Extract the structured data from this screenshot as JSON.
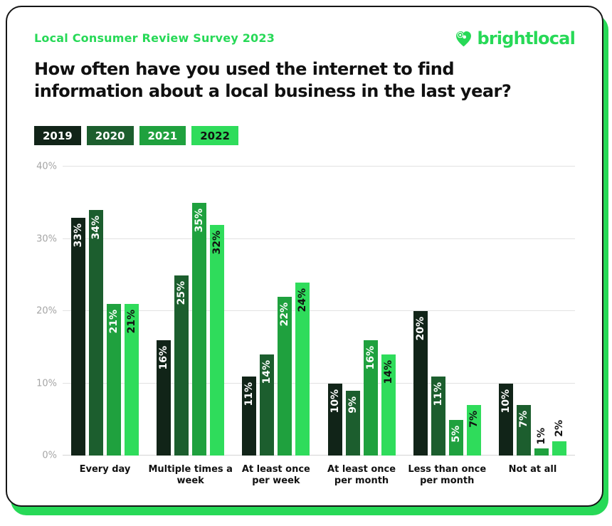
{
  "header": {
    "eyebrow": "Local Consumer Review Survey 2023",
    "brand_name": "brightlocal"
  },
  "title_lines": [
    "How often have you used the internet to find",
    "information about a local business in the last year?"
  ],
  "chart_data": {
    "type": "bar",
    "title": "How often have you used the internet to find information about a local business in the last year?",
    "categories": [
      "Every day",
      "Multiple times a week",
      "At least once per week",
      "At least once per month",
      "Less than once per month",
      "Not at all"
    ],
    "series": [
      {
        "name": "2019",
        "color": "#112418",
        "label_color": "#ffffff",
        "values": [
          33,
          16,
          11,
          10,
          20,
          10
        ]
      },
      {
        "name": "2020",
        "color": "#1c5e2e",
        "label_color": "#ffffff",
        "values": [
          34,
          25,
          14,
          9,
          11,
          7
        ]
      },
      {
        "name": "2021",
        "color": "#1fa13e",
        "label_color": "#ffffff",
        "values": [
          21,
          35,
          22,
          16,
          5,
          1
        ]
      },
      {
        "name": "2022",
        "color": "#2fdc5b",
        "label_color": "#111111",
        "values": [
          21,
          32,
          24,
          14,
          7,
          2
        ]
      }
    ],
    "value_suffix": "%",
    "xlabel": "",
    "ylabel": "",
    "ylim": [
      0,
      40
    ],
    "yticks": [
      0,
      10,
      20,
      30,
      40
    ],
    "ytick_suffix": "%",
    "grid": true,
    "legend_position": "top-left"
  },
  "colors": {
    "accent_green": "#27d957",
    "card_border": "#151515",
    "axis_text": "#a5a5a5",
    "gridline": "#e2e2e2",
    "title_text": "#101010"
  }
}
